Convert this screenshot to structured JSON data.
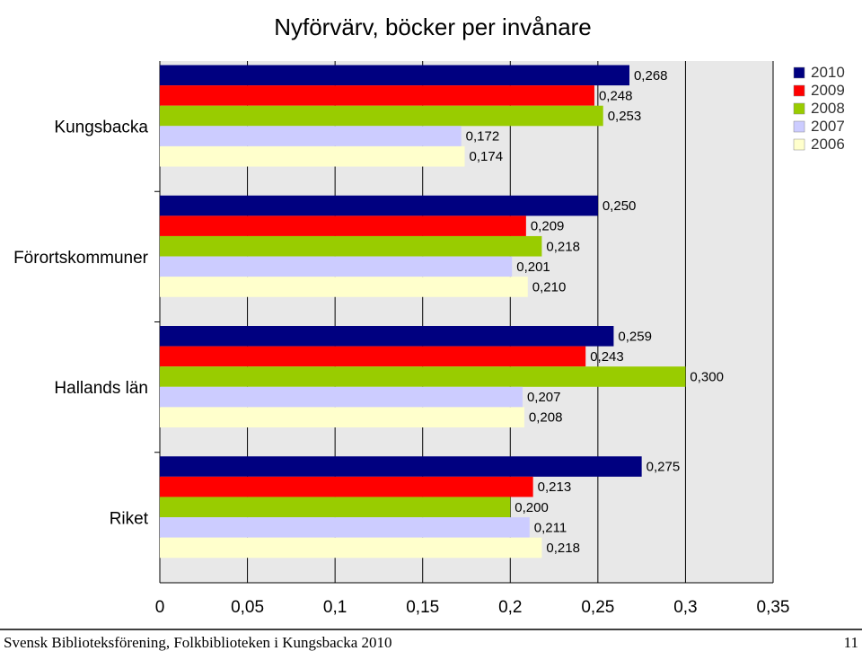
{
  "chart_data": {
    "type": "bar",
    "orientation": "horizontal",
    "title": "Nyförvärv, böcker per invånare",
    "categories": [
      "Kungsbacka",
      "Förortskommuner",
      "Hallands län",
      "Riket"
    ],
    "series": [
      {
        "name": "2010",
        "color": "#000080",
        "values": [
          0.268,
          0.25,
          0.259,
          0.275
        ],
        "labels": [
          "0,268",
          "0,250",
          "0,259",
          "0,275"
        ]
      },
      {
        "name": "2009",
        "color": "#ff0000",
        "values": [
          0.248,
          0.209,
          0.243,
          0.213
        ],
        "labels": [
          "0,248",
          "0,209",
          "0,243",
          "0,213"
        ]
      },
      {
        "name": "2008",
        "color": "#99cc00",
        "values": [
          0.253,
          0.218,
          0.3,
          0.2
        ],
        "labels": [
          "0,253",
          "0,218",
          "0,300",
          "0,200"
        ]
      },
      {
        "name": "2007",
        "color": "#ccccff",
        "values": [
          0.172,
          0.201,
          0.207,
          0.211
        ],
        "labels": [
          "0,172",
          "0,201",
          "0,207",
          "0,211"
        ]
      },
      {
        "name": "2006",
        "color": "#ffffcc",
        "values": [
          0.174,
          0.21,
          0.208,
          0.218
        ],
        "labels": [
          "0,174",
          "0,210",
          "0,208",
          "0,218"
        ]
      }
    ],
    "xlim": [
      0,
      0.35
    ],
    "xticks": [
      0,
      0.05,
      0.1,
      0.15,
      0.2,
      0.25,
      0.3,
      0.35
    ],
    "xtick_labels": [
      "0",
      "0,05",
      "0,1",
      "0,15",
      "0,2",
      "0,25",
      "0,3",
      "0,35"
    ],
    "grid": "vertical",
    "legend": "top-right",
    "plot_background": "#e8e8e8"
  },
  "footer": {
    "left": "Svensk Biblioteksförening, Folkbiblioteken i Kungsbacka 2010",
    "page": "11"
  }
}
